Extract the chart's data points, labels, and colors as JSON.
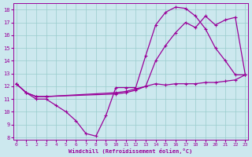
{
  "background_color": "#cce8ee",
  "grid_color": "#99cccc",
  "line_color": "#990099",
  "xlabel": "Windchill (Refroidissement éolien,°C)",
  "xlim": [
    -0.3,
    23.3
  ],
  "ylim": [
    7.8,
    18.5
  ],
  "xticks": [
    0,
    1,
    2,
    3,
    4,
    5,
    6,
    7,
    8,
    9,
    10,
    11,
    12,
    13,
    14,
    15,
    16,
    17,
    18,
    19,
    20,
    21,
    22,
    23
  ],
  "yticks": [
    8,
    9,
    10,
    11,
    12,
    13,
    14,
    15,
    16,
    17,
    18
  ],
  "line1_x": [
    0,
    1,
    2,
    3,
    4,
    5,
    6,
    7,
    8,
    9,
    10,
    11,
    12,
    13,
    14,
    15,
    16,
    17,
    18,
    19,
    20,
    21,
    22,
    23
  ],
  "line1_y": [
    12.2,
    11.5,
    11.0,
    11.0,
    10.5,
    10.0,
    9.3,
    8.3,
    8.1,
    9.7,
    11.9,
    11.9,
    11.9,
    14.4,
    16.8,
    17.8,
    18.2,
    18.1,
    17.5,
    16.5,
    15.0,
    14.0,
    12.9,
    12.9
  ],
  "line2_x": [
    0,
    1,
    2,
    3,
    10,
    11,
    12,
    13,
    14,
    15,
    16,
    17,
    18,
    19,
    20,
    21,
    22,
    23
  ],
  "line2_y": [
    12.2,
    11.5,
    11.2,
    11.2,
    11.5,
    11.6,
    11.8,
    12.0,
    14.0,
    15.2,
    16.2,
    17.0,
    16.6,
    17.5,
    16.8,
    17.2,
    17.4,
    12.9
  ],
  "line3_x": [
    0,
    1,
    2,
    3,
    10,
    11,
    12,
    13,
    14,
    15,
    16,
    17,
    18,
    19,
    20,
    21,
    22,
    23
  ],
  "line3_y": [
    12.2,
    11.5,
    11.2,
    11.2,
    11.4,
    11.5,
    11.7,
    12.0,
    12.2,
    12.1,
    12.2,
    12.2,
    12.2,
    12.3,
    12.3,
    12.4,
    12.5,
    12.9
  ]
}
